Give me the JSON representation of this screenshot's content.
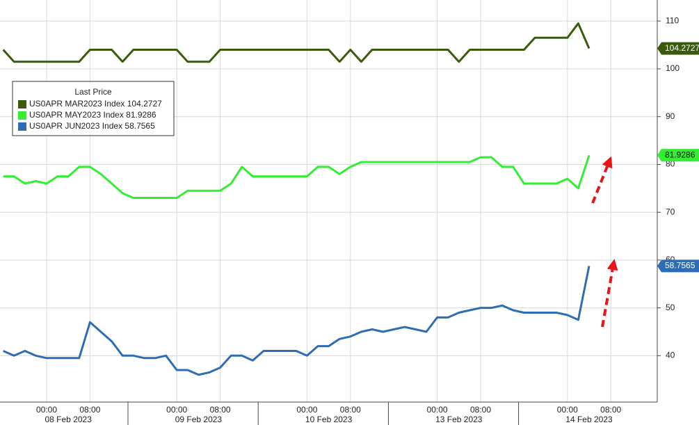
{
  "chart_data": {
    "type": "line",
    "categories": [
      null,
      null,
      null,
      null,
      "00:00",
      null,
      null,
      null,
      "08:00",
      null,
      null,
      null,
      null,
      null,
      null,
      null,
      "00:00",
      null,
      null,
      null,
      "08:00",
      null,
      null,
      null,
      null,
      null,
      null,
      null,
      "00:00",
      null,
      null,
      null,
      "08:00",
      null,
      null,
      null,
      null,
      null,
      null,
      null,
      "00:00",
      null,
      null,
      null,
      "08:00",
      null,
      null,
      null,
      null,
      null,
      null,
      null,
      "00:00",
      null,
      null,
      null,
      "08:00"
    ],
    "dates": [
      "08 Feb 2023",
      "09 Feb 2023",
      "10 Feb 2023",
      "13 Feb 2023",
      "14 Feb 2023"
    ],
    "legend_title": "Last Price",
    "series": [
      {
        "name": "US0APR MAR2023 Index 104.2727",
        "color": "#3b5b0c",
        "values": [
          104,
          101.5,
          101.5,
          101.5,
          101.5,
          101.5,
          101.5,
          101.5,
          104,
          104,
          104,
          101.5,
          104,
          104,
          104,
          104,
          104,
          101.5,
          101.5,
          101.5,
          104,
          104,
          104,
          104,
          104,
          104,
          104,
          104,
          104,
          104,
          104,
          101.5,
          104,
          101.5,
          104,
          104,
          104,
          104,
          104,
          104,
          104,
          104,
          101.5,
          104,
          104,
          104,
          104,
          104,
          104,
          106.5,
          106.5,
          106.5,
          106.5,
          109.5,
          104.2727,
          null,
          null
        ]
      },
      {
        "name": "US0APR MAY2023 Index 81.9286",
        "color": "#33ee33",
        "values": [
          77.5,
          77.5,
          76,
          76.5,
          76,
          77.5,
          77.5,
          79.5,
          79.5,
          78,
          76,
          74,
          73,
          73,
          73,
          73,
          73,
          74.5,
          74.5,
          74.5,
          74.5,
          76,
          79.5,
          77.5,
          77.5,
          77.5,
          77.5,
          77.5,
          77.5,
          79.5,
          79.5,
          78,
          79.5,
          80.5,
          80.5,
          80.5,
          80.5,
          80.5,
          80.5,
          80.5,
          80.5,
          80.5,
          80.5,
          80.5,
          81.5,
          81.5,
          79.5,
          79.5,
          76,
          76,
          76,
          76,
          77,
          75,
          81.9286,
          null,
          null
        ]
      },
      {
        "name": "US0APR JUN2023 Index 58.7565",
        "color": "#2f6db3",
        "values": [
          41,
          40,
          41,
          40,
          39.5,
          39.5,
          39.5,
          39.5,
          47,
          45,
          43,
          40,
          40,
          39.5,
          39.5,
          40,
          37,
          37,
          36,
          36.5,
          37.5,
          40,
          40,
          39,
          41,
          41,
          41,
          41,
          40,
          42,
          42,
          43.5,
          44,
          45,
          45.5,
          45,
          45.5,
          46,
          45.5,
          45,
          48,
          48,
          49,
          49.5,
          50,
          50,
          50.5,
          49.5,
          49,
          49,
          49,
          49,
          48.5,
          47.5,
          58.7565,
          null,
          null
        ]
      }
    ],
    "ylim": [
      30.3,
      114.4
    ],
    "yticks": [
      40,
      50,
      60,
      70,
      80,
      90,
      100,
      110
    ],
    "grid": true
  }
}
